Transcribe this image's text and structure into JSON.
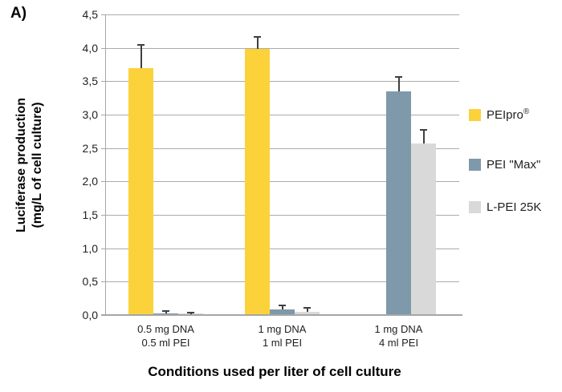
{
  "panel_label": "A)",
  "chart_data": {
    "type": "bar",
    "title": "",
    "xlabel": "Conditions used per liter of cell culture",
    "ylabel": "Luciferase production (mg/L of cell culture)",
    "ylabel_line1": "Luciferase production",
    "ylabel_line2": "(mg/L of cell culture)",
    "ylim": [
      0,
      4.5
    ],
    "ytick_step": 0.5,
    "decimal_separator": ",",
    "grid": true,
    "legend_position": "right",
    "yticks": [
      {
        "value": 0.0,
        "label": "0,0"
      },
      {
        "value": 0.5,
        "label": "0,5"
      },
      {
        "value": 1.0,
        "label": "1,0"
      },
      {
        "value": 1.5,
        "label": "1,5"
      },
      {
        "value": 2.0,
        "label": "2,0"
      },
      {
        "value": 2.5,
        "label": "2,5"
      },
      {
        "value": 3.0,
        "label": "3,0"
      },
      {
        "value": 3.5,
        "label": "3,5"
      },
      {
        "value": 4.0,
        "label": "4,0"
      },
      {
        "value": 4.5,
        "label": "4,5"
      }
    ],
    "categories": [
      {
        "line1": "0.5 mg DNA",
        "line2": "0.5 ml PEI"
      },
      {
        "line1": "1 mg DNA",
        "line2": "1 ml PEI"
      },
      {
        "line1": "1 mg DNA",
        "line2": "4 ml PEI"
      }
    ],
    "series": [
      {
        "name": "PEIpro",
        "name_sup": "®",
        "color": "#FCD23B",
        "values": [
          3.7,
          3.98,
          null
        ],
        "errors_plus": [
          0.35,
          0.18,
          null
        ]
      },
      {
        "name": "PEI \"Max\"",
        "color": "#7E99A9",
        "values": [
          0.03,
          0.09,
          3.35
        ],
        "errors_plus": [
          0.03,
          0.06,
          0.22
        ]
      },
      {
        "name": "L-PEI 25K",
        "color": "#D9D9D9",
        "values": [
          0.02,
          0.05,
          2.57
        ],
        "errors_plus": [
          0.02,
          0.06,
          0.2
        ]
      }
    ]
  },
  "colors": {
    "gridline": "#ABABAB",
    "axis": "#A6A6A6",
    "error_bar": "#3F3F3F",
    "text": "#1F1F1F"
  }
}
